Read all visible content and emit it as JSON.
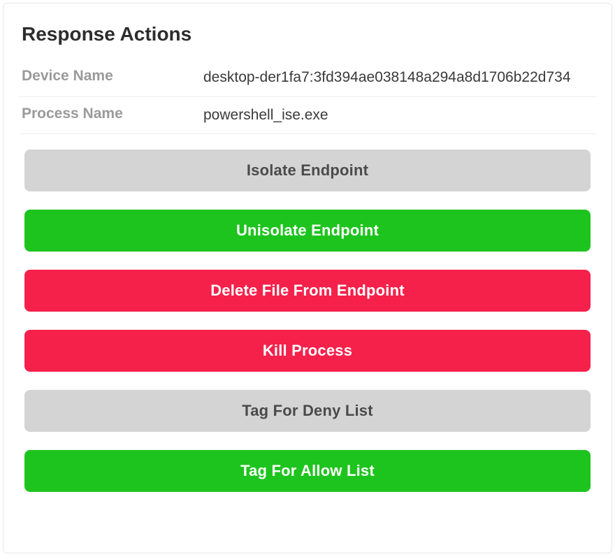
{
  "panel": {
    "title": "Response Actions"
  },
  "info": {
    "device_name_label": "Device Name",
    "device_name_value": "desktop-der1fa7:3fd394ae038148a294a8d1706b22d734",
    "process_name_label": "Process Name",
    "process_name_value": "powershell_ise.exe"
  },
  "actions": {
    "isolate": "Isolate Endpoint",
    "unisolate": "Unisolate Endpoint",
    "delete_file": "Delete File From Endpoint",
    "kill_process": "Kill Process",
    "tag_deny": "Tag For Deny List",
    "tag_allow": "Tag For Allow List"
  },
  "colors": {
    "disabled_bg": "#d4d4d4",
    "disabled_fg": "#4a4a4a",
    "green_bg": "#1ec41e",
    "red_bg": "#f5214b",
    "action_fg": "#ffffff",
    "label_fg": "#9a9a9a",
    "value_fg": "#3a3a3a",
    "title_fg": "#2d2d2d",
    "border": "#ececec",
    "panel_bg": "#ffffff"
  }
}
